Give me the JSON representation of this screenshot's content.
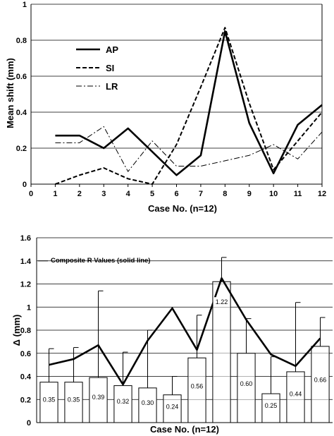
{
  "chart_data": [
    {
      "type": "line",
      "xlabel": "Case No. (n=12)",
      "ylabel": "Mean shift (mm)",
      "xlim": [
        0,
        12
      ],
      "ylim": [
        0,
        1
      ],
      "x_ticks": [
        "0",
        "1",
        "2",
        "3",
        "4",
        "5",
        "6",
        "7",
        "8",
        "9",
        "10",
        "11",
        "12"
      ],
      "y_ticks": [
        "0",
        "0.2",
        "0.4",
        "0.6",
        "0.8",
        "1"
      ],
      "y_tick_values": [
        0,
        0.2,
        0.4,
        0.6,
        0.8,
        1
      ],
      "grid": "horizontal",
      "legend_position": "top-left",
      "series": [
        {
          "name": "AP",
          "style": "solid",
          "x": [
            1,
            2,
            3,
            4,
            5,
            6,
            7,
            8,
            9,
            10,
            11,
            12
          ],
          "values": [
            0.27,
            0.27,
            0.2,
            0.31,
            0.18,
            0.05,
            0.16,
            0.85,
            0.34,
            0.06,
            0.33,
            0.44
          ]
        },
        {
          "name": "SI",
          "style": "dashed",
          "x": [
            1,
            2,
            3,
            4,
            5,
            6,
            7,
            8,
            9,
            10,
            11,
            12
          ],
          "values": [
            0.0,
            0.05,
            0.09,
            0.03,
            0.0,
            0.22,
            0.54,
            0.87,
            0.45,
            0.08,
            0.24,
            0.4
          ]
        },
        {
          "name": "LR",
          "style": "dash-dot",
          "x": [
            1,
            2,
            3,
            4,
            5,
            6,
            7,
            8,
            9,
            10,
            11,
            12
          ],
          "values": [
            0.23,
            0.23,
            0.32,
            0.07,
            0.24,
            0.1,
            0.1,
            0.13,
            0.16,
            0.22,
            0.14,
            0.29
          ]
        }
      ]
    },
    {
      "type": "bar",
      "xlabel": "Case No. (n=12)",
      "ylabel": "Δ (mm)",
      "ylim": [
        0,
        1.6
      ],
      "y_ticks": [
        "0",
        "0.2",
        "0.4",
        "0.6",
        "0.8",
        "1",
        "1.2",
        "1.4",
        "1.6"
      ],
      "y_tick_values": [
        0,
        0.2,
        0.4,
        0.6,
        0.8,
        1,
        1.2,
        1.4,
        1.6
      ],
      "grid": "horizontal",
      "annotation": "Composite R Values (solid line)",
      "bars": {
        "values": [
          0.35,
          0.35,
          0.39,
          0.32,
          0.3,
          0.24,
          0.56,
          1.22,
          0.6,
          0.25,
          0.44,
          0.66
        ],
        "labels": [
          "0.35",
          "0.35",
          "0.39",
          "0.32",
          "0.30",
          "0.24",
          "0.56",
          "1.22",
          "0.60",
          "0.25",
          "0.44",
          "0.66"
        ],
        "error_upper": [
          0.64,
          0.65,
          1.14,
          0.61,
          0.8,
          0.4,
          0.93,
          1.43,
          0.9,
          0.57,
          1.04,
          0.91
        ]
      },
      "line": {
        "values": [
          0.5,
          0.55,
          0.67,
          0.33,
          0.71,
          0.99,
          0.63,
          1.25,
          0.89,
          0.59,
          0.49,
          0.73
        ]
      }
    }
  ]
}
